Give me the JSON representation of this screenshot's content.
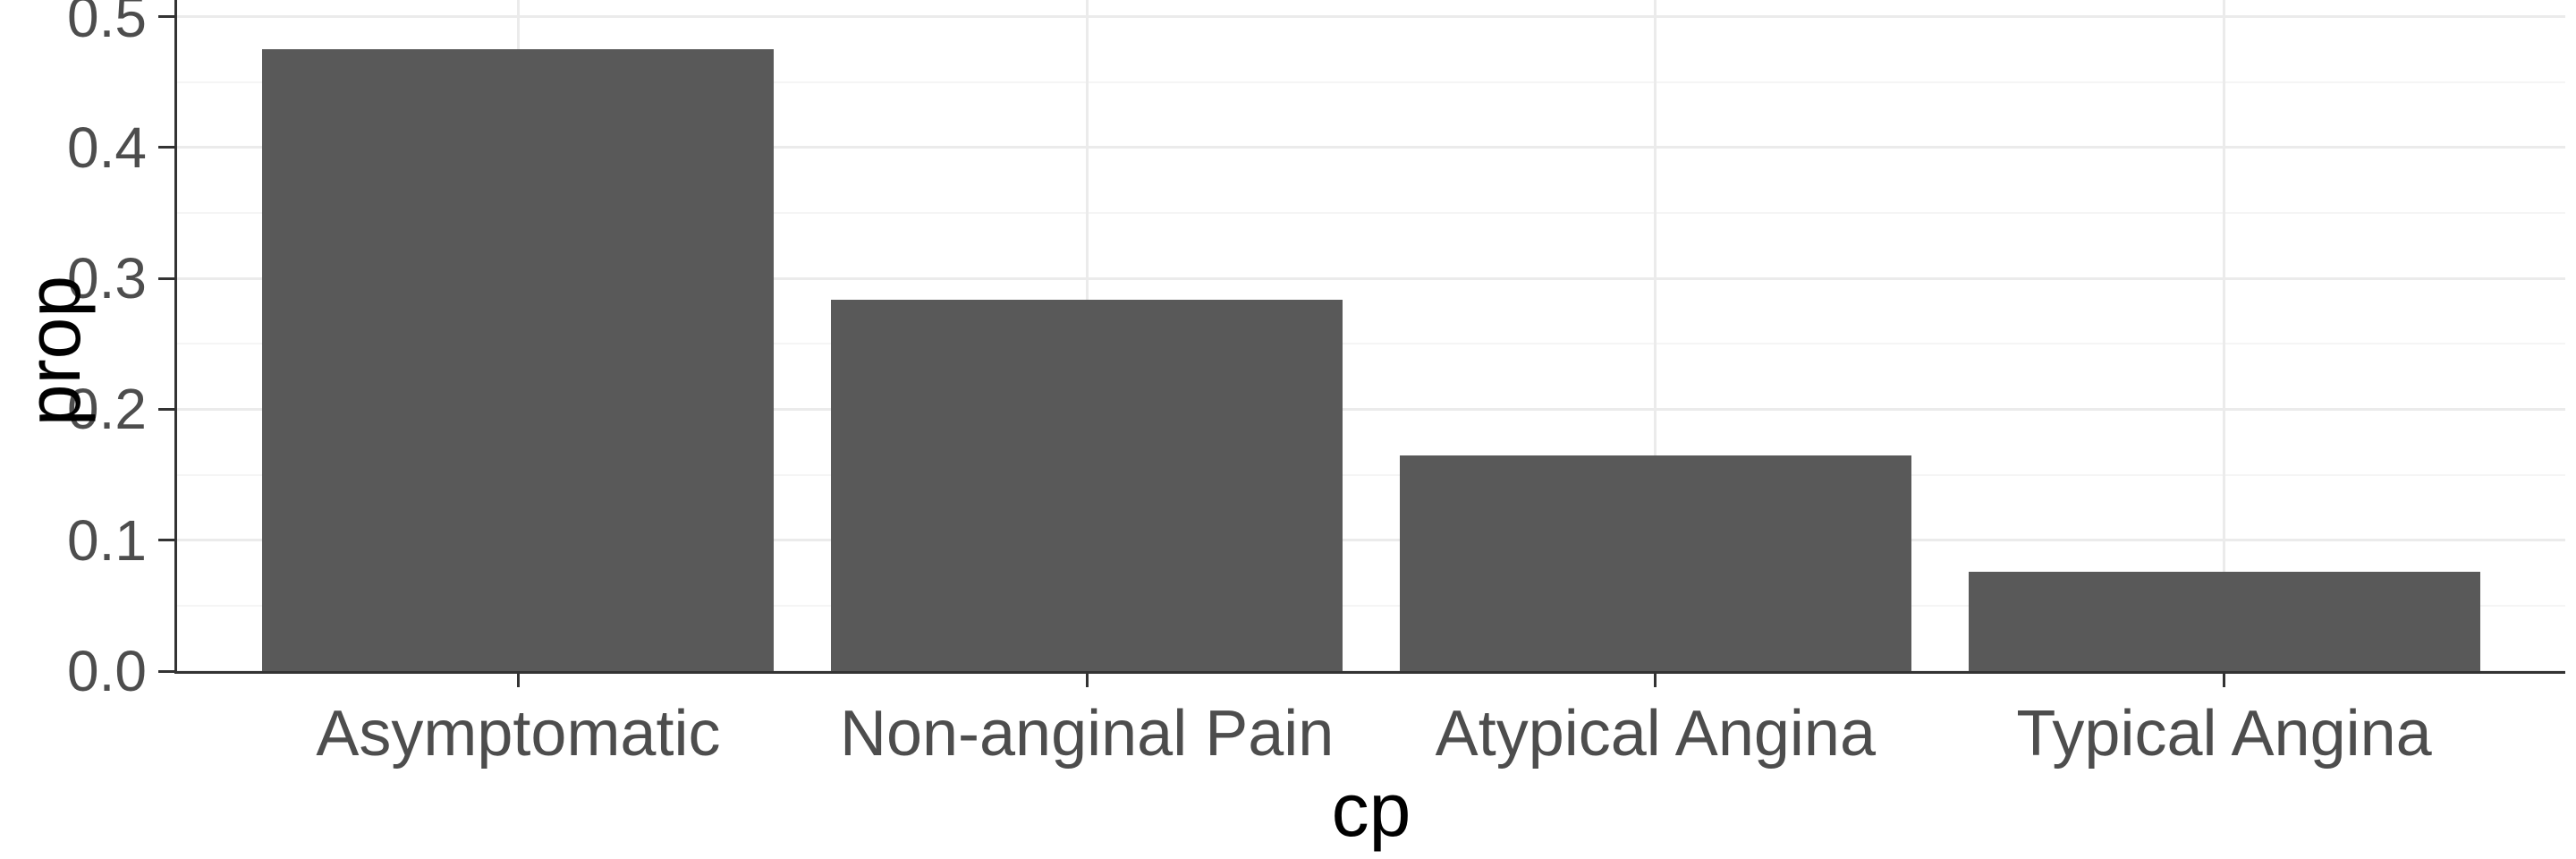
{
  "chart_data": {
    "type": "bar",
    "title": "",
    "xlabel": "cp",
    "ylabel": "prop",
    "categories": [
      "Asymptomatic",
      "Non-anginal Pain",
      "Atypical Angina",
      "Typical Angina"
    ],
    "values": [
      0.475,
      0.284,
      0.165,
      0.076
    ],
    "ylim": [
      0,
      0.5
    ],
    "yticks": [
      "0.0",
      "0.1",
      "0.2",
      "0.3",
      "0.4",
      "0.5"
    ],
    "minor_yticks": [
      0.05,
      0.15,
      0.25,
      0.35,
      0.45
    ],
    "grid": "on",
    "legend": "none",
    "bar_color": "#595959",
    "panel_background": "#ffffff",
    "major_grid_color": "#ebebeb",
    "minor_grid_color": "#f5f5f5",
    "axis_text_color": "#4d4d4d",
    "axis_title_color": "#000000",
    "axis_line_color": "#333333"
  }
}
